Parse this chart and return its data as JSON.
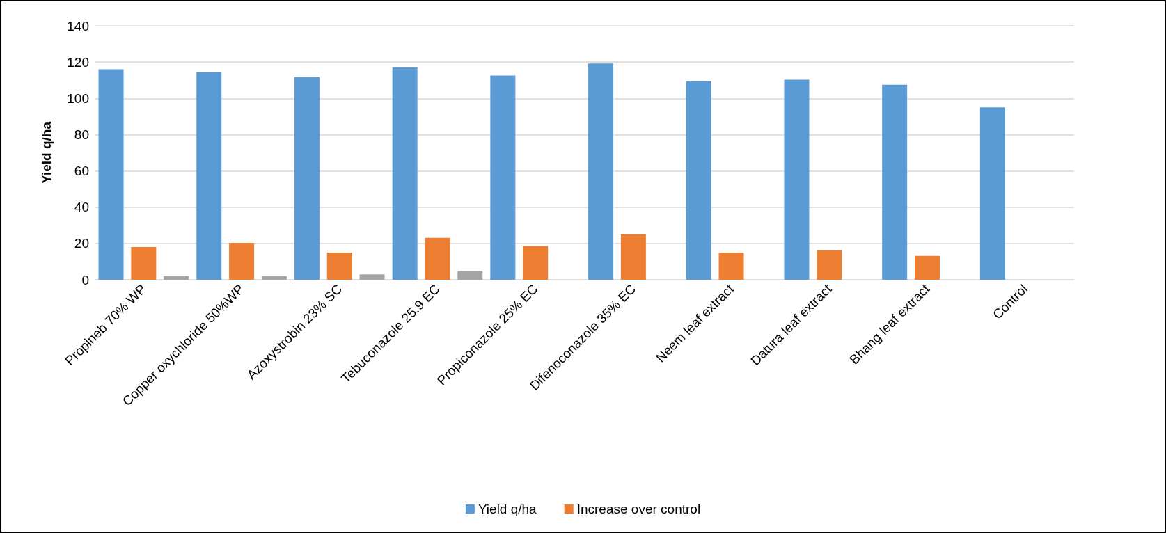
{
  "chart_data": {
    "type": "bar",
    "ylabel": "Yield q/ha",
    "categories": [
      "Propineb 70% WP",
      "Copper oxychloride 50%WP",
      "Azoxystrobin 23% SC",
      "Tebuconazole 25.9 EC",
      "Propiconazole 25% EC",
      "Difenoconazole 35% EC",
      "Neem leaf extract",
      "Datura leaf extract",
      "Bhang leaf extract",
      "Control"
    ],
    "series": [
      {
        "name": "Yield q/ha",
        "color": "#5b9bd5",
        "values": [
          116,
          114.3,
          111.6,
          117,
          112.6,
          119.2,
          109.4,
          110.3,
          107.5,
          95
        ]
      },
      {
        "name": "Increase over control",
        "color": "#ed7d31",
        "values": [
          18,
          20.3,
          15,
          23.1,
          18.6,
          25,
          15,
          16.2,
          13.1,
          null
        ]
      },
      {
        "color": "#a5a5a5",
        "values": [
          2,
          2,
          3,
          5,
          null,
          null,
          null,
          null,
          null,
          null
        ]
      }
    ],
    "ylim": [
      0,
      140
    ],
    "yticks": [
      0,
      20,
      40,
      60,
      80,
      100,
      120,
      140
    ],
    "grid": "y",
    "legend": "bottom"
  }
}
